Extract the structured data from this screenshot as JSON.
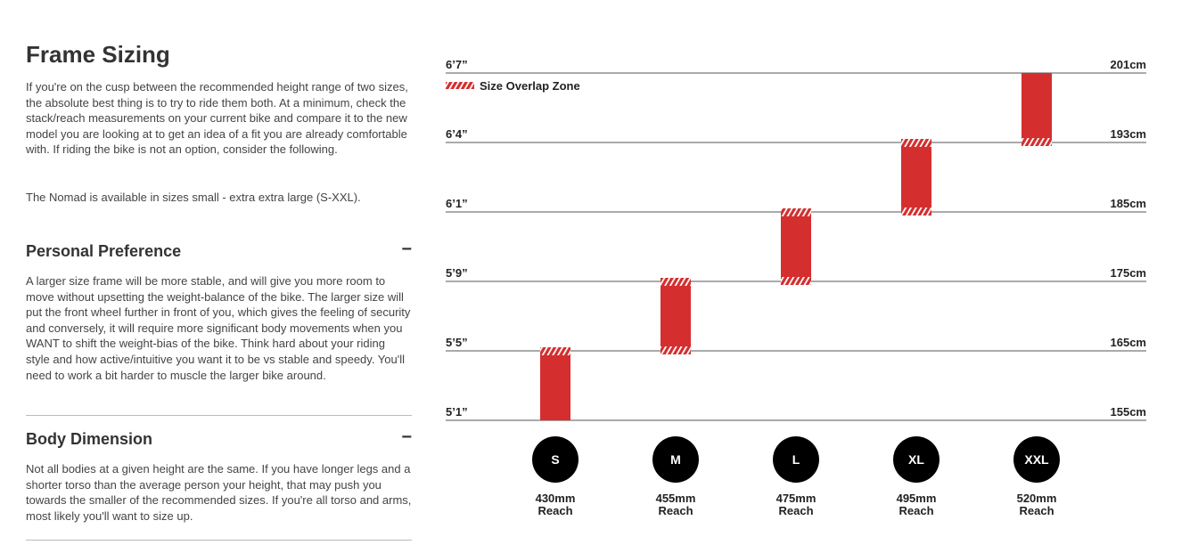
{
  "page": {
    "title": "Frame Sizing",
    "intro": [
      "If you're on the cusp between the recommended height range of two sizes, the absolute best thing is to try to ride them both. At a minimum, check the stack/reach measurements on your current bike and compare it to the new model you are looking at to get an idea of a fit you are already comfortable with. If riding the bike is not an option, consider the following.",
      "The Nomad is available in sizes small - extra extra large (S-XXL)."
    ],
    "sections": [
      {
        "heading": "Personal Preference",
        "toggle": "−",
        "text": "A larger size frame will be more stable, and will give you more room to move without upsetting the weight-balance of the bike. The larger size will put the front wheel further in front of you, which gives the feeling of security and conversely, it will require more significant body movements when you WANT to shift the weight-bias of the bike. Think hard about your riding style and how active/intuitive you want it to be vs stable and speedy. You'll need to work a bit harder to muscle the larger bike around."
      },
      {
        "heading": "Body Dimension",
        "toggle": "−",
        "text": "Not all bodies at a given height are the same. If you have longer legs and a shorter torso than the average person your height, that may push you towards the smaller of the recommended sizes. If you're all torso and arms, most likely you'll want to size up."
      }
    ]
  },
  "chart": {
    "legend": "Size Overlap Zone",
    "color": "#d42e2e",
    "levels": [
      {
        "value": 155,
        "label": "155cm",
        "imperial": "5’1”"
      },
      {
        "value": 165,
        "label": "165cm",
        "imperial": "5’5”"
      },
      {
        "value": 175,
        "label": "175cm",
        "imperial": "5’9”"
      },
      {
        "value": 185,
        "label": "185cm",
        "imperial": "6’1”"
      },
      {
        "value": 193,
        "label": "193cm",
        "imperial": "6’4”"
      },
      {
        "value": 201,
        "label": "201cm",
        "imperial": "6’7”"
      }
    ],
    "sizes": [
      {
        "name": "S",
        "reach": "430mm",
        "reach_label": "Reach",
        "range": [
          155,
          165
        ]
      },
      {
        "name": "M",
        "reach": "455mm",
        "reach_label": "Reach",
        "range": [
          165,
          175
        ]
      },
      {
        "name": "L",
        "reach": "475mm",
        "reach_label": "Reach",
        "range": [
          175,
          185
        ]
      },
      {
        "name": "XL",
        "reach": "495mm",
        "reach_label": "Reach",
        "range": [
          185,
          193
        ]
      },
      {
        "name": "XXL",
        "reach": "520mm",
        "reach_label": "Reach",
        "range": [
          193,
          201
        ]
      }
    ]
  }
}
